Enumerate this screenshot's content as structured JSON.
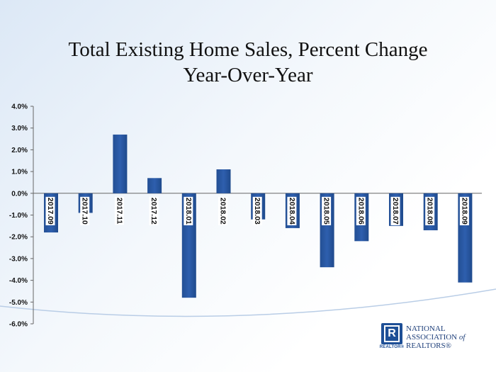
{
  "chart_data": {
    "type": "bar",
    "title": "Total Existing Home Sales, Percent Change Year-Over-Year",
    "title_lines": [
      "Total Existing Home Sales, Percent Change",
      "Year-Over-Year"
    ],
    "categories": [
      "2017.09",
      "2017.10",
      "2017.11",
      "2017.12",
      "2018.01",
      "2018.02",
      "2018.03",
      "2018.04",
      "2018.05",
      "2018.06",
      "2018.07",
      "2018.08",
      "2018.09"
    ],
    "values": [
      -1.8,
      -0.9,
      2.7,
      0.7,
      -4.8,
      1.1,
      -1.2,
      -1.6,
      -3.4,
      -2.2,
      -1.5,
      -1.7,
      -4.1
    ],
    "ylim": [
      -6.0,
      4.0
    ],
    "yticks": [
      "4.0%",
      "3.0%",
      "2.0%",
      "1.0%",
      "0.0%",
      "-1.0%",
      "-2.0%",
      "-3.0%",
      "-4.0%",
      "-5.0%",
      "-6.0%"
    ],
    "ytick_values": [
      4,
      3,
      2,
      1,
      0,
      -1,
      -2,
      -3,
      -4,
      -5,
      -6
    ],
    "xlabel": "",
    "ylabel": "",
    "grid": false,
    "legend": "none",
    "bar_color": "#2e5fae"
  },
  "logo": {
    "mark_letter": "R",
    "mark_caption": "REALTOR®",
    "line1": "NATIONAL",
    "line2": "ASSOCIATION",
    "line2_suffix": "of",
    "line3": "REALTORS®"
  }
}
